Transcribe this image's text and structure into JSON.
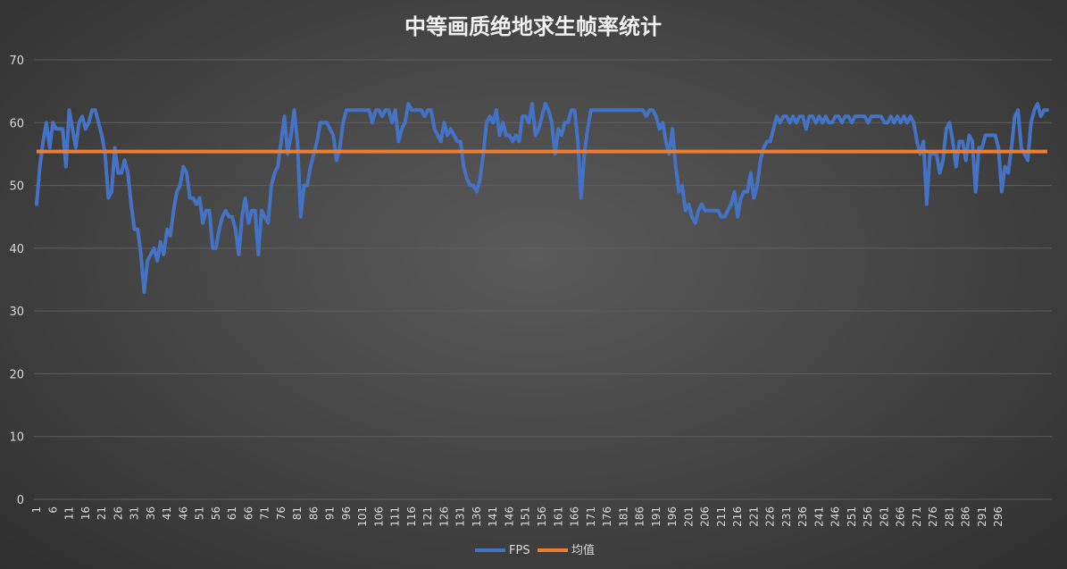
{
  "chart_data": {
    "type": "line",
    "title": "中等画质绝地求生帧率统计",
    "xlabel": "",
    "ylabel": "",
    "ylim": [
      0,
      70
    ],
    "yticks": [
      0,
      10,
      20,
      30,
      40,
      50,
      60,
      70
    ],
    "x_start": 1,
    "x_tick_labels": [
      "1",
      "6",
      "11",
      "16",
      "21",
      "26",
      "31",
      "36",
      "41",
      "46",
      "51",
      "56",
      "61",
      "66",
      "71",
      "76",
      "81",
      "86",
      "91",
      "96",
      "101",
      "106",
      "111",
      "116",
      "121",
      "126",
      "131",
      "136",
      "141",
      "146",
      "151",
      "156",
      "161",
      "166",
      "171",
      "176",
      "181",
      "186",
      "191",
      "196",
      "201",
      "206",
      "211",
      "216",
      "221",
      "226",
      "231",
      "236",
      "241",
      "246",
      "251",
      "256",
      "261",
      "266",
      "271",
      "276",
      "281",
      "286",
      "291",
      "296"
    ],
    "grid": true,
    "legend_position": "bottom",
    "series": [
      {
        "name": "FPS",
        "color": "#4472c4",
        "values": [
          47,
          53,
          57,
          60,
          56,
          60,
          59,
          59,
          59,
          53,
          62,
          59,
          56,
          60,
          61,
          59,
          60,
          62,
          62,
          60,
          58,
          55,
          48,
          49,
          56,
          52,
          52,
          54,
          52,
          47,
          43,
          43,
          39,
          33,
          38,
          39,
          40,
          38,
          41,
          39,
          43,
          42,
          46,
          49,
          50,
          53,
          52,
          48,
          48,
          47,
          48,
          44,
          46,
          46,
          40,
          40,
          43,
          45,
          46,
          45,
          45,
          43,
          39,
          45,
          48,
          44,
          46,
          46,
          39,
          46,
          45,
          44,
          50,
          52,
          53,
          57,
          61,
          55,
          58,
          62,
          57,
          45,
          50,
          50,
          53,
          55,
          57,
          60,
          60,
          60,
          59,
          58,
          54,
          56,
          60,
          62,
          62,
          62,
          62,
          62,
          62,
          62,
          62,
          60,
          62,
          62,
          61,
          62,
          62,
          60,
          62,
          57,
          59,
          60,
          63,
          62,
          62,
          62,
          62,
          61,
          62,
          62,
          59,
          58,
          57,
          60,
          58,
          59,
          58,
          57,
          57,
          53,
          51,
          50,
          50,
          49,
          51,
          55,
          60,
          61,
          60,
          62,
          58,
          60,
          58,
          58,
          57,
          58,
          57,
          61,
          61,
          60,
          63,
          58,
          59,
          61,
          63,
          62,
          60,
          55,
          59,
          58,
          60,
          60,
          62,
          62,
          57,
          48,
          55,
          59,
          62,
          62,
          62,
          62,
          62,
          62,
          62,
          62,
          62,
          62,
          62,
          62,
          62,
          62,
          62,
          62,
          62,
          61,
          62,
          62,
          61,
          59,
          60,
          57,
          55,
          59,
          53,
          49,
          50,
          46,
          47,
          45,
          44,
          46,
          47,
          46,
          46,
          46,
          46,
          46,
          45,
          45,
          46,
          47,
          49,
          45,
          48,
          49,
          49,
          52,
          48,
          50,
          54,
          56,
          57,
          57,
          59,
          61,
          60,
          61,
          61,
          60,
          61,
          60,
          61,
          61,
          59,
          61,
          61,
          60,
          61,
          60,
          61,
          60,
          60,
          61,
          61,
          60,
          61,
          61,
          60,
          61,
          61,
          61,
          61,
          60,
          61,
          61,
          61,
          61,
          60,
          60,
          61,
          60,
          61,
          60,
          61,
          60,
          61,
          60,
          57,
          55,
          57,
          47,
          55,
          55,
          55,
          52,
          54,
          59,
          60,
          57,
          53,
          57,
          57,
          54,
          58,
          57,
          49,
          56,
          56,
          58,
          58,
          58,
          58,
          56,
          49,
          53,
          52,
          56,
          61,
          62,
          56,
          55,
          54,
          60,
          62,
          63,
          61,
          62,
          62
        ]
      },
      {
        "name": "均值",
        "color": "#ed7d31",
        "constant": 55.4
      }
    ]
  }
}
